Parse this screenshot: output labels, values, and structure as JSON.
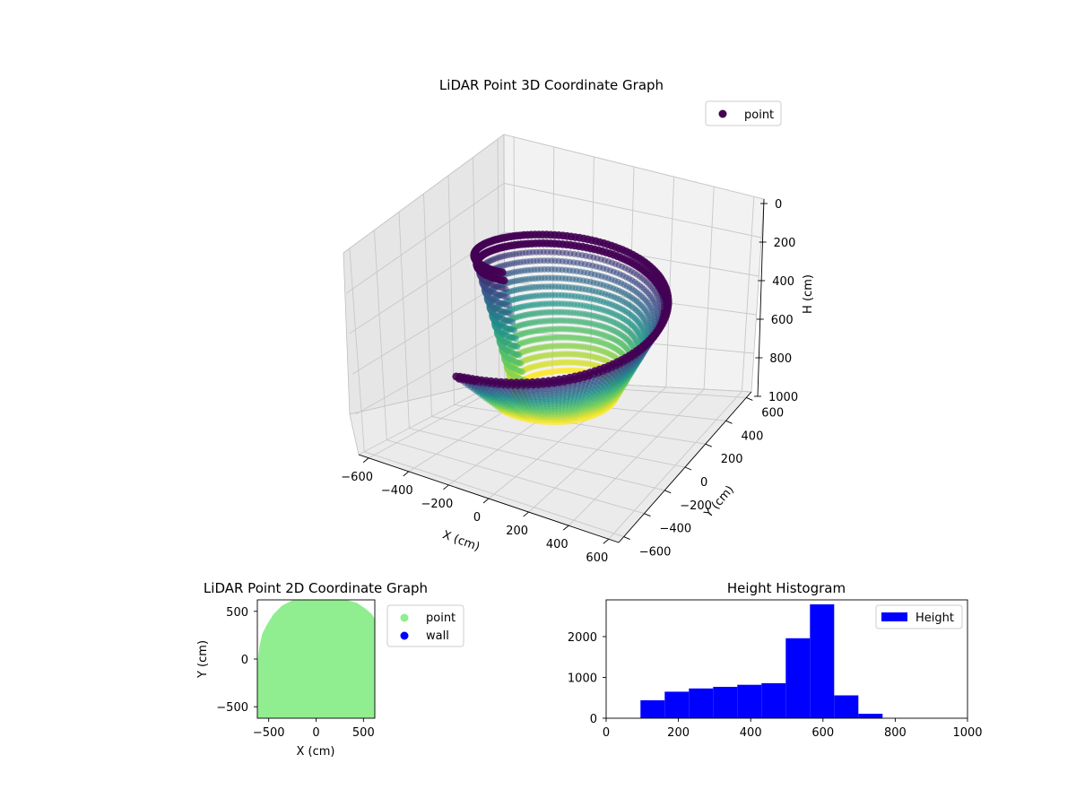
{
  "colors": {
    "viridis": [
      "#440154",
      "#3b528b",
      "#21918c",
      "#5ec962",
      "#fde725"
    ],
    "legend_point_3d": "#440154",
    "point_2d": "#90ee90",
    "wall_2d": "#0000ff",
    "histogram": "#0000ff",
    "pane_back": "#f2f2f2",
    "pane_side": "#e6e6e6",
    "pane_floor": "#ebebeb",
    "grid": "#c8c8c8"
  },
  "chart_data": [
    {
      "type": "scatter3d",
      "title": "LiDAR Point 3D Coordinate Graph",
      "xlabel": "X (cm)",
      "ylabel": "Y (cm)",
      "zlabel": "H (cm)",
      "xlim": [
        -650,
        650
      ],
      "ylim": [
        -650,
        650
      ],
      "zlim": [
        0,
        1000
      ],
      "z_inverted": true,
      "x_ticks": [
        "−600",
        "−400",
        "−200",
        "0",
        "200",
        "400",
        "600"
      ],
      "y_ticks": [
        "−600",
        "−400",
        "−200",
        "0",
        "200",
        "400",
        "600"
      ],
      "z_ticks": [
        "0",
        "200",
        "400",
        "600",
        "800",
        "1000"
      ],
      "legend": {
        "entries": [
          "point"
        ],
        "placement": "upper-right"
      },
      "grid": true,
      "colormap": "viridis",
      "series": [
        {
          "name": "point",
          "shape": "spiral-band",
          "description_values": {
            "radius_cm": [
              320,
              620
            ],
            "height_cm": [
              100,
              770
            ]
          }
        }
      ]
    },
    {
      "type": "scatter",
      "title": "LiDAR Point 2D Coordinate Graph",
      "xlabel": "X (cm)",
      "ylabel": "Y (cm)",
      "xlim": [
        -620,
        620
      ],
      "ylim": [
        -620,
        620
      ],
      "x_ticks": [
        "−500",
        "0",
        "500"
      ],
      "y_ticks": [
        "−500",
        "0",
        "500"
      ],
      "legend": {
        "entries": [
          "point",
          "wall"
        ],
        "placement": "outside-right"
      },
      "series": [
        {
          "name": "point",
          "region": "disc-like footprint"
        },
        {
          "name": "wall",
          "count": 0
        }
      ]
    },
    {
      "type": "bar",
      "title": "Height Histogram",
      "xlim": [
        0,
        1000
      ],
      "ylim": [
        0,
        2900
      ],
      "x_ticks": [
        "0",
        "200",
        "400",
        "600",
        "800",
        "1000"
      ],
      "y_ticks": [
        "0",
        "1000",
        "2000"
      ],
      "legend": {
        "entries": [
          "Height"
        ],
        "placement": "upper-right"
      },
      "bins": [
        {
          "x0": 95,
          "x1": 162,
          "value": 440
        },
        {
          "x0": 162,
          "x1": 229,
          "value": 650
        },
        {
          "x0": 229,
          "x1": 296,
          "value": 730
        },
        {
          "x0": 296,
          "x1": 363,
          "value": 770
        },
        {
          "x0": 363,
          "x1": 430,
          "value": 820
        },
        {
          "x0": 430,
          "x1": 497,
          "value": 860
        },
        {
          "x0": 497,
          "x1": 564,
          "value": 1960
        },
        {
          "x0": 564,
          "x1": 631,
          "value": 2790
        },
        {
          "x0": 631,
          "x1": 698,
          "value": 560
        },
        {
          "x0": 698,
          "x1": 765,
          "value": 110
        }
      ]
    }
  ]
}
